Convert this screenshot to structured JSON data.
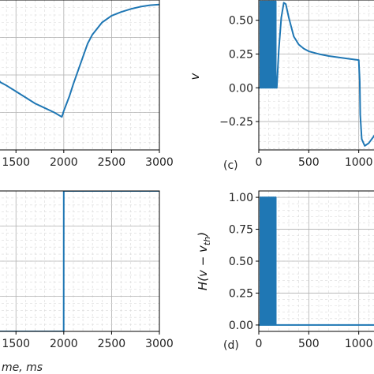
{
  "chart_data": [
    {
      "id": "top-left",
      "type": "line",
      "panel_label": "",
      "xlabel": "",
      "ylabel": "",
      "xlim": [
        1300,
        3000
      ],
      "ylim": [
        0,
        1
      ],
      "x_ticks": [
        "1500",
        "2000",
        "2500",
        "3000"
      ],
      "x_tick_values": [
        1500,
        2000,
        2500,
        3000
      ],
      "y_ticks": [],
      "grid": true,
      "series": [
        {
          "color": "#1f77b4",
          "x": [
            1300,
            1340,
            1400,
            1500,
            1600,
            1700,
            1800,
            1900,
            1980,
            2000,
            2030,
            2060,
            2100,
            2150,
            2200,
            2250,
            2300,
            2400,
            2500,
            2600,
            2700,
            2800,
            2900,
            3000
          ],
          "y": [
            0.48,
            0.45,
            0.43,
            0.39,
            0.35,
            0.31,
            0.28,
            0.25,
            0.22,
            0.26,
            0.31,
            0.36,
            0.44,
            0.53,
            0.62,
            0.71,
            0.77,
            0.85,
            0.895,
            0.92,
            0.94,
            0.955,
            0.965,
            0.97
          ]
        }
      ]
    },
    {
      "id": "c",
      "type": "line",
      "panel_label": "(c)",
      "xlabel": "",
      "ylabel": "v",
      "xlim": [
        0,
        1200
      ],
      "ylim": [
        -0.46,
        0.65
      ],
      "x_ticks": [
        "0",
        "500",
        "1000"
      ],
      "x_tick_values": [
        0,
        500,
        1000
      ],
      "y_ticks": [
        "0.50",
        "0.25",
        "0.00",
        "−0.25"
      ],
      "y_tick_values": [
        0.5,
        0.25,
        0.0,
        -0.25
      ],
      "grid": true,
      "series": [
        {
          "color": "#1f77b4",
          "spikes": {
            "start": 15,
            "end": 180,
            "count": 8,
            "high": 0.64,
            "low": 0.0
          },
          "x": [
            180,
            200,
            225,
            250,
            270,
            300,
            350,
            400,
            450,
            500,
            600,
            700,
            800,
            900,
            1000,
            1010,
            1015,
            1030,
            1060,
            1100,
            1150,
            1200
          ],
          "y": [
            0.0,
            0.28,
            0.52,
            0.63,
            0.62,
            0.52,
            0.38,
            0.32,
            0.29,
            0.27,
            0.25,
            0.235,
            0.225,
            0.215,
            0.205,
            0.05,
            -0.2,
            -0.38,
            -0.43,
            -0.41,
            -0.36,
            -0.3
          ]
        }
      ]
    },
    {
      "id": "bottom-left",
      "type": "line",
      "panel_label": "",
      "xlabel": "me, ms",
      "ylabel": "",
      "xlim": [
        1300,
        3000
      ],
      "ylim": [
        0,
        1
      ],
      "x_ticks": [
        "1500",
        "2000",
        "2500",
        "3000"
      ],
      "x_tick_values": [
        1500,
        2000,
        2500,
        3000
      ],
      "y_ticks": [],
      "grid": true,
      "series": [
        {
          "color": "#1f77b4",
          "x": [
            1300,
            1999,
            2000,
            3000
          ],
          "y": [
            0,
            0,
            1,
            1
          ]
        }
      ]
    },
    {
      "id": "d",
      "type": "line",
      "panel_label": "(d)",
      "xlabel": "",
      "ylabel": "H(v − v_th)",
      "xlim": [
        0,
        1200
      ],
      "ylim": [
        -0.05,
        1.05
      ],
      "x_ticks": [
        "0",
        "500",
        "1000"
      ],
      "x_tick_values": [
        0,
        500,
        1000
      ],
      "y_ticks": [
        "1.00",
        "0.75",
        "0.50",
        "0.25",
        "0.00"
      ],
      "y_tick_values": [
        1.0,
        0.75,
        0.5,
        0.25,
        0.0
      ],
      "grid": true,
      "series": [
        {
          "color": "#1f77b4",
          "spikes": {
            "start": 15,
            "end": 180,
            "count": 8,
            "high": 1.0,
            "low": 0.0
          },
          "x": [
            180,
            1200
          ],
          "y": [
            0,
            0
          ]
        }
      ]
    }
  ]
}
